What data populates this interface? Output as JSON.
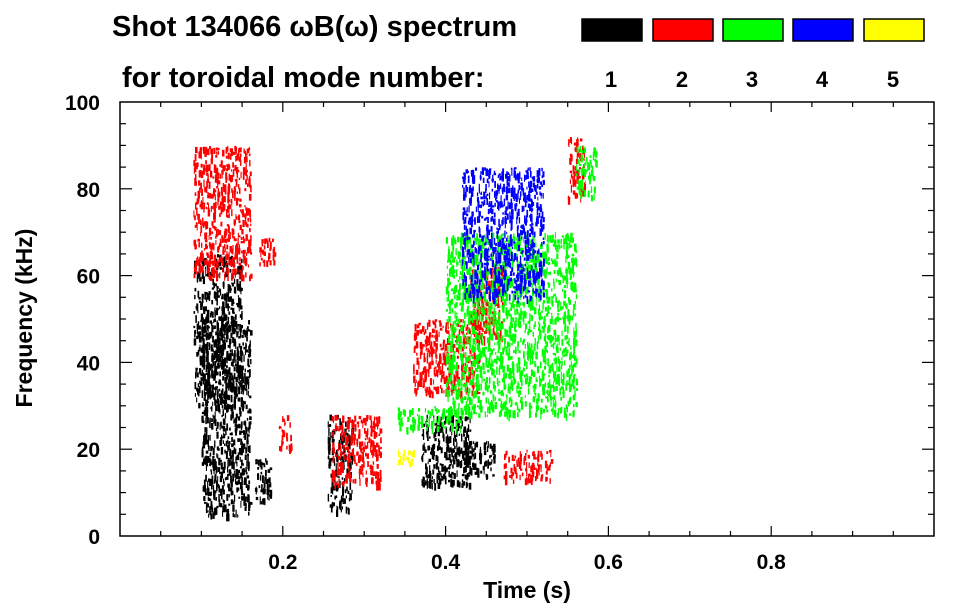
{
  "header": {
    "title_line1": "Shot 134066 ωB(ω) spectrum",
    "title_line2": "for toroidal mode number:"
  },
  "legend": [
    {
      "label": "1",
      "color": "#000000"
    },
    {
      "label": "2",
      "color": "#ff0000"
    },
    {
      "label": "3",
      "color": "#00ff00"
    },
    {
      "label": "4",
      "color": "#0000ff"
    },
    {
      "label": "5",
      "color": "#ffff00"
    }
  ],
  "chart_data": {
    "type": "heatmap",
    "title": "Shot 134066 ωB(ω) spectrum",
    "xlabel": "Time (s)",
    "ylabel": "Frequency (kHz)",
    "xlim": [
      0.0,
      1.0
    ],
    "ylim": [
      0,
      100
    ],
    "x_ticks": [
      {
        "value": 0.2,
        "label": "0.2"
      },
      {
        "value": 0.4,
        "label": "0.4"
      },
      {
        "value": 0.6,
        "label": "0.6"
      },
      {
        "value": 0.8,
        "label": "0.8"
      }
    ],
    "y_ticks": [
      {
        "value": 0,
        "label": "0"
      },
      {
        "value": 20,
        "label": "20"
      },
      {
        "value": 40,
        "label": "40"
      },
      {
        "value": 60,
        "label": "60"
      },
      {
        "value": 80,
        "label": "80"
      },
      {
        "value": 100,
        "label": "100"
      }
    ],
    "series": [
      {
        "name": "1",
        "color": "#000000",
        "regions": [
          {
            "t": [
              0.09,
              0.15
            ],
            "f": [
              30,
              65
            ]
          },
          {
            "t": [
              0.1,
              0.16
            ],
            "f": [
              5,
              50
            ]
          },
          {
            "t": [
              0.165,
              0.185
            ],
            "f": [
              8,
              18
            ]
          },
          {
            "t": [
              0.255,
              0.285
            ],
            "f": [
              6,
              28
            ]
          },
          {
            "t": [
              0.37,
              0.43
            ],
            "f": [
              12,
              28
            ]
          },
          {
            "t": [
              0.4,
              0.46
            ],
            "f": [
              14,
              22
            ]
          }
        ]
      },
      {
        "name": "2",
        "color": "#ff0000",
        "regions": [
          {
            "t": [
              0.09,
              0.16
            ],
            "f": [
              60,
              90
            ]
          },
          {
            "t": [
              0.17,
              0.19
            ],
            "f": [
              63,
              69
            ]
          },
          {
            "t": [
              0.195,
              0.21
            ],
            "f": [
              20,
              28
            ]
          },
          {
            "t": [
              0.36,
              0.44
            ],
            "f": [
              33,
              50
            ]
          },
          {
            "t": [
              0.43,
              0.47
            ],
            "f": [
              45,
              62
            ]
          },
          {
            "t": [
              0.47,
              0.53
            ],
            "f": [
              13,
              20
            ]
          },
          {
            "t": [
              0.55,
              0.57
            ],
            "f": [
              78,
              92
            ]
          },
          {
            "t": [
              0.26,
              0.32
            ],
            "f": [
              12,
              28
            ]
          }
        ]
      },
      {
        "name": "3",
        "color": "#00ff00",
        "regions": [
          {
            "t": [
              0.34,
              0.42
            ],
            "f": [
              25,
              30
            ]
          },
          {
            "t": [
              0.4,
              0.56
            ],
            "f": [
              28,
              70
            ]
          },
          {
            "t": [
              0.56,
              0.585
            ],
            "f": [
              78,
              90
            ]
          }
        ]
      },
      {
        "name": "4",
        "color": "#0000ff",
        "regions": [
          {
            "t": [
              0.42,
              0.52
            ],
            "f": [
              55,
              85
            ]
          }
        ]
      },
      {
        "name": "5",
        "color": "#ffff00",
        "regions": [
          {
            "t": [
              0.34,
              0.36
            ],
            "f": [
              17,
              20
            ]
          }
        ]
      }
    ]
  }
}
